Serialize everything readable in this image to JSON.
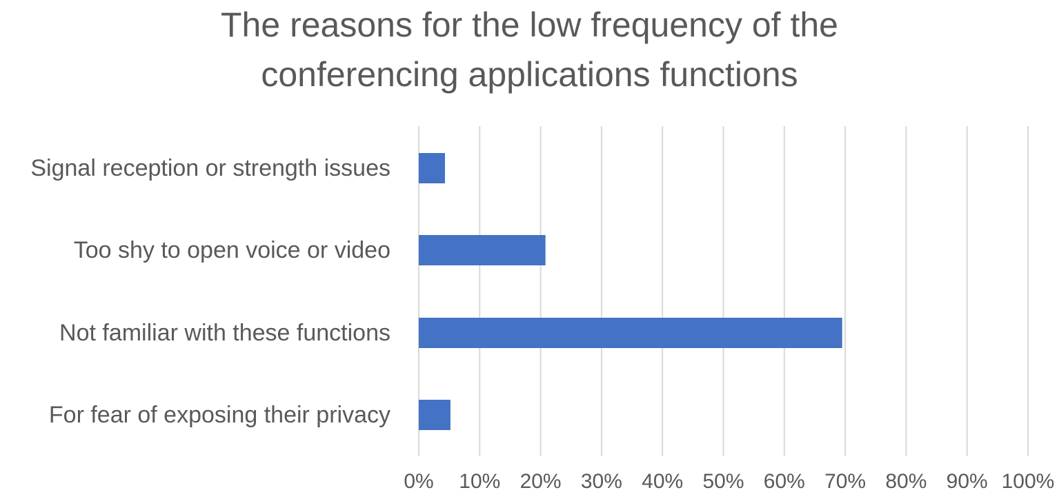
{
  "chart_title": {
    "line1": "The reasons for the low frequency of the",
    "line2": "conferencing applications functions"
  },
  "chart_data": {
    "type": "bar",
    "orientation": "horizontal",
    "title": "The reasons for the low frequency of the conferencing applications functions",
    "categories": [
      "Signal reception or strength issues",
      "Too shy to open voice or video",
      "Not familiar with these functions",
      "For fear of exposing their privacy"
    ],
    "values": [
      4.3,
      20.8,
      69.5,
      5.2
    ],
    "value_unit": "%",
    "xlim": [
      0,
      100
    ],
    "ticks": [
      "0%",
      "10%",
      "20%",
      "30%",
      "40%",
      "50%",
      "60%",
      "70%",
      "80%",
      "90%",
      "100%"
    ],
    "grid": "vertical",
    "legend": "none",
    "bar_color": "#4472c4",
    "text_color": "#595959",
    "grid_color": "#d9d9d9"
  }
}
